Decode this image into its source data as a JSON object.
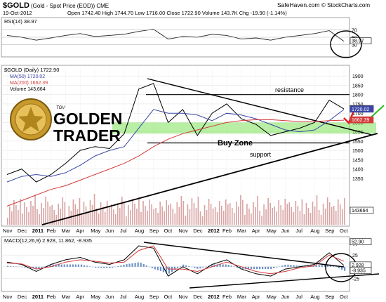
{
  "header": {
    "symbol": "$GOLD",
    "name": "(Gold - Spot Price (EOD)) CME",
    "date": "19-Oct-2012",
    "ohlc": "Open 1742.40  High 1744.70  Low 1716.00  Close 1722.90  Volume 143.7K  Chg -19.90 (-1.14%)",
    "site": "SafeHaven.com",
    "copyright": "© StockCharts.com"
  },
  "colors": {
    "price": "#000000",
    "ma50": "#3b46a6",
    "ma200": "#d43a3a",
    "volume": "#d9a3a3",
    "buyzone": "#7ee15a",
    "macd_hist": "#4a78b8",
    "highlight": "#2ebd1e"
  },
  "chart_data": [
    {
      "type": "line",
      "panel": "RSI",
      "legend": "RSI(14) 38.97",
      "ylim": [
        0,
        100
      ],
      "y_ticks": [
        "70",
        "50",
        "30"
      ],
      "x": [
        "Nov",
        "Dec",
        "2011",
        "Feb",
        "Mar",
        "Apr",
        "May",
        "Jun",
        "Jul",
        "Aug",
        "Sep",
        "Oct",
        "Nov",
        "Dec",
        "2012",
        "Feb",
        "Mar",
        "Apr",
        "May",
        "Jun",
        "Jul",
        "Aug",
        "Sep",
        "Oct"
      ],
      "values": [
        55,
        50,
        42,
        48,
        55,
        60,
        52,
        55,
        58,
        66,
        72,
        45,
        52,
        50,
        58,
        55,
        45,
        48,
        42,
        50,
        55,
        60,
        68,
        38.97
      ],
      "tag_value": "38.97"
    },
    {
      "type": "line",
      "panel": "Price",
      "legend": [
        "$GOLD (Daily) 1722.90",
        "MA(50) 1720.02",
        "MA(200) 1662.39",
        "Volume 143,664"
      ],
      "ylim": [
        1100,
        1950
      ],
      "y_ticks": [
        "1900",
        "1850",
        "1800",
        "1750",
        "1700",
        "1650",
        "1600",
        "1550",
        "1500",
        "1450",
        "1400",
        "1350"
      ],
      "x": [
        "Nov",
        "Dec",
        "2011",
        "Feb",
        "Mar",
        "Apr",
        "May",
        "Jun",
        "Jul",
        "Aug",
        "Sep",
        "Oct",
        "Nov",
        "Dec",
        "2012",
        "Feb",
        "Mar",
        "Apr",
        "May",
        "Jun",
        "Jul",
        "Aug",
        "Sep",
        "Oct"
      ],
      "series": [
        {
          "name": "$GOLD (Daily) 1722.90",
          "values": [
            1370,
            1400,
            1330,
            1370,
            1430,
            1500,
            1520,
            1510,
            1590,
            1830,
            1860,
            1650,
            1720,
            1580,
            1700,
            1750,
            1670,
            1640,
            1580,
            1600,
            1620,
            1650,
            1770,
            1722.9
          ]
        },
        {
          "name": "MA(50) 1720.02",
          "values": [
            1330,
            1360,
            1370,
            1360,
            1380,
            1420,
            1470,
            1500,
            1520,
            1620,
            1720,
            1700,
            1700,
            1690,
            1660,
            1700,
            1690,
            1670,
            1640,
            1610,
            1600,
            1610,
            1660,
            1720.02
          ]
        },
        {
          "name": "MA(200) 1662.39",
          "values": [
            1200,
            1230,
            1260,
            1290,
            1310,
            1340,
            1370,
            1400,
            1430,
            1470,
            1520,
            1560,
            1590,
            1610,
            1630,
            1650,
            1660,
            1665,
            1665,
            1660,
            1655,
            1655,
            1660,
            1662.39
          ]
        }
      ],
      "tags": [
        "1722.90",
        "1720.02",
        "1662.39"
      ],
      "volume_tag": "143664",
      "annotations": [
        "resistance",
        "Buy Zone",
        "support"
      ],
      "levels": {
        "resistance": 1800,
        "support": 1540,
        "buy_zone": [
          1590,
          1650
        ]
      }
    },
    {
      "type": "line",
      "panel": "MACD",
      "legend": "MACD(12,26,9) 2.928, 11.862, -8.935",
      "ylim": [
        -50,
        60
      ],
      "y_ticks": [
        "50",
        "25",
        "0",
        "-25"
      ],
      "x": [
        "Nov",
        "Dec",
        "2011",
        "Feb",
        "Mar",
        "Apr",
        "May",
        "Jun",
        "Jul",
        "Aug",
        "Sep",
        "Oct",
        "Nov",
        "Dec",
        "2012",
        "Feb",
        "Mar",
        "Apr",
        "May",
        "Jun",
        "Jul",
        "Aug",
        "Sep",
        "Oct"
      ],
      "series": [
        {
          "name": "MACD",
          "values": [
            10,
            5,
            -10,
            5,
            15,
            20,
            10,
            5,
            15,
            45,
            40,
            -20,
            0,
            -15,
            5,
            15,
            -5,
            -15,
            -20,
            -5,
            0,
            5,
            30,
            2.928
          ]
        },
        {
          "name": "Signal",
          "values": [
            8,
            6,
            -5,
            0,
            10,
            15,
            12,
            8,
            10,
            35,
            45,
            -5,
            -5,
            -10,
            0,
            10,
            0,
            -10,
            -15,
            -10,
            -2,
            2,
            25,
            11.862
          ]
        }
      ],
      "tags": [
        "52.90",
        "2.928",
        "-8.935"
      ]
    }
  ],
  "logo": {
    "line1": "GOLDEN",
    "line2": "TRADER",
    "small": "TGV"
  }
}
